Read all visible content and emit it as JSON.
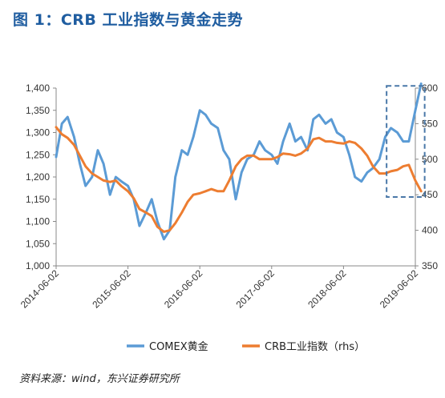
{
  "figure": {
    "title": "图 1：CRB 工业指数与黄金走势",
    "source": "资料来源：wind，东兴证券研究所"
  },
  "colors": {
    "gold": "#5b9bd5",
    "crb": "#ed7d31",
    "highlight": "#4a78a8"
  },
  "chart_data": {
    "type": "line",
    "x_start": "2014-06-02",
    "x_end": "2019-06-02",
    "x_tick_labels": [
      "2014-06-02",
      "2015-06-02",
      "2016-06-02",
      "2017-06-02",
      "2018-06-02",
      "2019-06-02"
    ],
    "ylim_left": [
      1000,
      1400
    ],
    "yticks_left": [
      "1,000",
      "1,050",
      "1,100",
      "1,150",
      "1,200",
      "1,250",
      "1,300",
      "1,350",
      "1,400"
    ],
    "ylim_right": [
      350,
      600
    ],
    "yticks_right": [
      "350",
      "400",
      "450",
      "500",
      "550",
      "600"
    ],
    "grid": false,
    "legend_position": "bottom",
    "highlight_box": {
      "x_from": 2019.02,
      "x_to": 2019.55,
      "y_from_left": 1155,
      "y_to_left": 1405
    },
    "series": [
      {
        "name": "COMEX黄金",
        "axis": "left",
        "x": [
          2014.42,
          2014.5,
          2014.58,
          2014.67,
          2014.75,
          2014.83,
          2014.92,
          2015.0,
          2015.08,
          2015.17,
          2015.25,
          2015.33,
          2015.42,
          2015.5,
          2015.58,
          2015.67,
          2015.75,
          2015.83,
          2015.92,
          2016.0,
          2016.08,
          2016.17,
          2016.25,
          2016.33,
          2016.42,
          2016.5,
          2016.58,
          2016.67,
          2016.75,
          2016.83,
          2016.92,
          2017.0,
          2017.08,
          2017.17,
          2017.25,
          2017.33,
          2017.42,
          2017.5,
          2017.58,
          2017.67,
          2017.75,
          2017.83,
          2017.92,
          2018.0,
          2018.08,
          2018.17,
          2018.25,
          2018.33,
          2018.42,
          2018.5,
          2018.58,
          2018.67,
          2018.75,
          2018.83,
          2018.92,
          2019.0,
          2019.08,
          2019.17,
          2019.25,
          2019.33,
          2019.42,
          2019.5
        ],
        "y": [
          1245,
          1320,
          1335,
          1290,
          1230,
          1180,
          1200,
          1260,
          1230,
          1160,
          1200,
          1190,
          1180,
          1150,
          1090,
          1120,
          1150,
          1100,
          1060,
          1080,
          1200,
          1260,
          1250,
          1290,
          1350,
          1340,
          1320,
          1310,
          1260,
          1240,
          1150,
          1210,
          1240,
          1250,
          1280,
          1260,
          1250,
          1230,
          1280,
          1320,
          1280,
          1290,
          1260,
          1330,
          1340,
          1320,
          1330,
          1300,
          1290,
          1250,
          1200,
          1190,
          1210,
          1220,
          1240,
          1290,
          1310,
          1300,
          1280,
          1280,
          1350,
          1410
        ]
      },
      {
        "name": "CRB工业指数（rhs）",
        "axis": "right",
        "x": [
          2014.42,
          2014.5,
          2014.58,
          2014.67,
          2014.75,
          2014.83,
          2014.92,
          2015.0,
          2015.08,
          2015.17,
          2015.25,
          2015.33,
          2015.42,
          2015.5,
          2015.58,
          2015.67,
          2015.75,
          2015.83,
          2015.92,
          2016.0,
          2016.08,
          2016.17,
          2016.25,
          2016.33,
          2016.42,
          2016.5,
          2016.58,
          2016.67,
          2016.75,
          2016.83,
          2016.92,
          2017.0,
          2017.08,
          2017.17,
          2017.25,
          2017.33,
          2017.42,
          2017.5,
          2017.58,
          2017.67,
          2017.75,
          2017.83,
          2017.92,
          2018.0,
          2018.08,
          2018.17,
          2018.25,
          2018.33,
          2018.42,
          2018.5,
          2018.58,
          2018.67,
          2018.75,
          2018.83,
          2018.92,
          2019.0,
          2019.08,
          2019.17,
          2019.25,
          2019.33,
          2019.42,
          2019.5
        ],
        "y": [
          545,
          535,
          530,
          520,
          505,
          490,
          480,
          475,
          470,
          468,
          470,
          462,
          455,
          445,
          430,
          425,
          420,
          405,
          398,
          400,
          410,
          425,
          440,
          450,
          452,
          455,
          458,
          455,
          455,
          470,
          490,
          500,
          505,
          505,
          500,
          500,
          500,
          503,
          508,
          507,
          505,
          508,
          515,
          528,
          530,
          525,
          525,
          523,
          522,
          525,
          523,
          515,
          505,
          490,
          480,
          480,
          483,
          485,
          490,
          492,
          470,
          455
        ]
      }
    ]
  }
}
